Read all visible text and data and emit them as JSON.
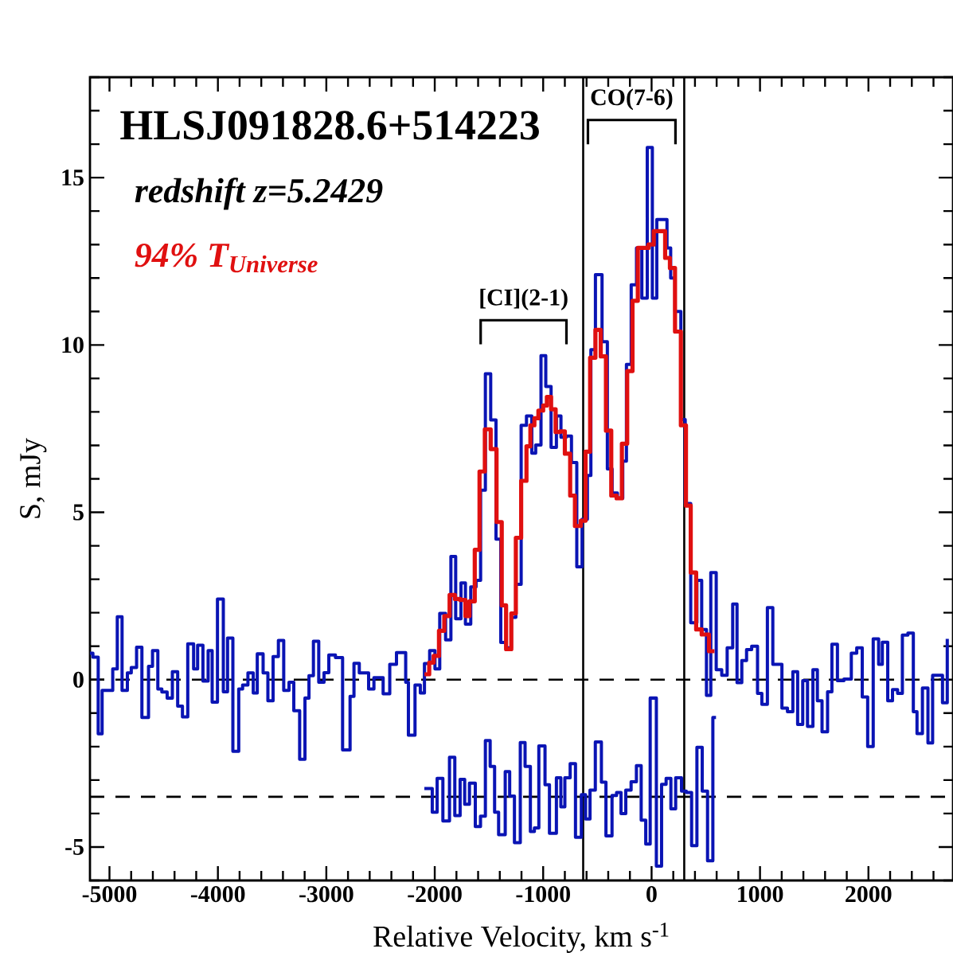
{
  "chart_data": {
    "type": "step",
    "title": "HLSJ091828.6+514223",
    "xlabel": "Relative Velocity, km s$^{-1}$",
    "ylabel": "S, mJy",
    "xlim": [
      -5180,
      2780
    ],
    "ylim": [
      -6,
      18
    ],
    "xticks": [
      -5000,
      {
        "value": -4800,
        "label": null
      },
      {
        "value": -4600,
        "label": null
      },
      {
        "value": -4400,
        "label": null
      },
      {
        "value": -4200,
        "label": null
      },
      -4000,
      {
        "value": -3800,
        "label": null
      },
      {
        "value": -3600,
        "label": null
      },
      {
        "value": -3400,
        "label": null
      },
      {
        "value": -3200,
        "label": null
      },
      -3000,
      {
        "value": -2800,
        "label": null
      },
      {
        "value": -2600,
        "label": null
      },
      {
        "value": -2400,
        "label": null
      },
      {
        "value": -2200,
        "label": null
      },
      -2000,
      {
        "value": -1800,
        "label": null
      },
      {
        "value": -1600,
        "label": null
      },
      {
        "value": -1400,
        "label": null
      },
      {
        "value": -1200,
        "label": null
      },
      -1000,
      {
        "value": -800,
        "label": null
      },
      {
        "value": -600,
        "label": null
      },
      {
        "value": -400,
        "label": null
      },
      {
        "value": -200,
        "label": null
      },
      0,
      {
        "value": 200,
        "label": null
      },
      {
        "value": 400,
        "label": null
      },
      {
        "value": 600,
        "label": null
      },
      {
        "value": 800,
        "label": null
      },
      1000,
      {
        "value": 1200,
        "label": null
      },
      {
        "value": 1400,
        "label": null
      },
      {
        "value": 1600,
        "label": null
      },
      {
        "value": 1800,
        "label": null
      },
      2000,
      {
        "value": 2200,
        "label": null
      },
      {
        "value": 2400,
        "label": null
      },
      {
        "value": 2600,
        "label": null
      }
    ],
    "yticks": [
      {
        "value": -6,
        "label": null
      },
      -5,
      {
        "value": -4,
        "label": null
      },
      {
        "value": -3,
        "label": null
      },
      {
        "value": -2,
        "label": null
      },
      {
        "value": -1,
        "label": null
      },
      0,
      {
        "value": 1,
        "label": null
      },
      {
        "value": 2,
        "label": null
      },
      {
        "value": 3,
        "label": null
      },
      {
        "value": 4,
        "label": null
      },
      5,
      {
        "value": 6,
        "label": null
      },
      {
        "value": 7,
        "label": null
      },
      {
        "value": 8,
        "label": null
      },
      {
        "value": 9,
        "label": null
      },
      10,
      {
        "value": 11,
        "label": null
      },
      {
        "value": 12,
        "label": null
      },
      {
        "value": 13,
        "label": null
      },
      {
        "value": 14,
        "label": null
      },
      15,
      {
        "value": 16,
        "label": null
      },
      {
        "value": 17,
        "label": null
      },
      {
        "value": 18,
        "label": null
      }
    ],
    "series": [
      {
        "color": "#0a14b4",
        "x": [
          -5180,
          -5153,
          -5104,
          -5068,
          -4970,
          -4928,
          -4884,
          -4835,
          -4799,
          -4750,
          -4701,
          -4640,
          -4603,
          -4554,
          -4517,
          -4468,
          -4420,
          -4371,
          -4327,
          -4278,
          -4224,
          -4187,
          -4138,
          -4090,
          -4053,
          -4004,
          -3950,
          -3911,
          -3862,
          -3808,
          -3772,
          -3723,
          -3674,
          -3637,
          -3583,
          -3539,
          -3491,
          -3442,
          -3393,
          -3344,
          -3300,
          -3246,
          -3197,
          -3160,
          -3119,
          -3070,
          -3021,
          -2977,
          -2916,
          -2850,
          -2781,
          -2745,
          -2696,
          -2610,
          -2561,
          -2476,
          -2415,
          -2353,
          -2268,
          -2243,
          -2182,
          -2133,
          -2095,
          -2047,
          -1998,
          -1954,
          -1900,
          -1851,
          -1807,
          -1758,
          -1717,
          -1668,
          -1619,
          -1577,
          -1533,
          -1484,
          -1435,
          -1391,
          -1342,
          -1294,
          -1252,
          -1203,
          -1154,
          -1105,
          -1069,
          -1020,
          -976,
          -927,
          -878,
          -836,
          -787,
          -739,
          -690,
          -641,
          -592,
          -560,
          -518,
          -457,
          -408,
          -364,
          -315,
          -266,
          -232,
          -188,
          -139,
          -90,
          -40,
          7,
          48,
          142,
          176,
          216,
          270,
          310,
          361,
          418,
          462,
          506,
          546,
          596,
          647,
          697,
          748,
          788,
          832,
          876,
          923,
          977,
          1017,
          1068,
          1118,
          1202,
          1253,
          1303,
          1347,
          1394,
          1438,
          1488,
          1529,
          1572,
          1623,
          1663,
          1714,
          1774,
          1842,
          1892,
          1943,
          1993,
          2044,
          2094,
          2128,
          2178,
          2222,
          2269,
          2313,
          2364,
          2414,
          2448,
          2498,
          2549,
          2592,
          2683,
          2727
        ],
        "values": [
          0.79,
          0.67,
          -1.62,
          -0.32,
          0.32,
          1.88,
          -0.32,
          0.2,
          0.36,
          0.97,
          -1.13,
          0.4,
          0.87,
          -0.28,
          -0.37,
          -0.55,
          0.24,
          -0.79,
          -1.11,
          1.07,
          0.32,
          1.03,
          -0.04,
          0.87,
          -0.67,
          2.41,
          -0.36,
          1.24,
          -2.14,
          -0.28,
          -0.16,
          0.2,
          -0.4,
          0.77,
          0.2,
          -0.63,
          0.69,
          1.17,
          -0.32,
          -0.08,
          -0.93,
          -2.38,
          -0.55,
          0.12,
          1.15,
          -0.08,
          0.21,
          0.74,
          0.66,
          -2.1,
          -0.5,
          0.49,
          0.2,
          -0.28,
          0.06,
          -0.42,
          0.46,
          0.81,
          -0.08,
          -1.66,
          -0.16,
          -0.4,
          0.48,
          0.87,
          0.32,
          1.98,
          1.19,
          3.68,
          1.82,
          2.89,
          1.66,
          2.77,
          2.97,
          5.66,
          9.14,
          7.76,
          4.2,
          1.11,
          0.95,
          1.86,
          2.85,
          7.6,
          7.88,
          6.77,
          7.01,
          9.68,
          8.76,
          6.94,
          7.88,
          7.24,
          7.28,
          6.49,
          3.37,
          4.79,
          6.1,
          9.86,
          12.1,
          10.1,
          6.3,
          5.58,
          5.42,
          6.53,
          9.42,
          11.8,
          12.9,
          11.4,
          15.9,
          11.4,
          13.75,
          12.9,
          12.0,
          11.0,
          7.77,
          5.26,
          1.7,
          2.97,
          1.5,
          -0.47,
          3.2,
          0.3,
          0.13,
          0.95,
          2.26,
          -0.09,
          0.57,
          0.9,
          1.0,
          -0.41,
          -0.74,
          2.15,
          0.46,
          -0.85,
          -0.96,
          0.24,
          -1.34,
          -0.03,
          -1.4,
          0.3,
          -0.63,
          -1.56,
          -0.36,
          1.06,
          -0.03,
          0.02,
          0.79,
          0.95,
          -0.52,
          -2.0,
          1.22,
          0.46,
          1.12,
          -0.63,
          -0.3,
          -0.41,
          1.33,
          1.39,
          -0.96,
          -1.61,
          -0.25,
          -1.89,
          0.13,
          -0.69,
          1.22
        ]
      },
      {
        "color": "#e01010",
        "x": [
          -2095,
          -2051,
          -2010,
          -1961,
          -1912,
          -1863,
          -1814,
          -1765,
          -1717,
          -1680,
          -1631,
          -1587,
          -1538,
          -1484,
          -1430,
          -1382,
          -1342,
          -1294,
          -1252,
          -1203,
          -1154,
          -1118,
          -1081,
          -1044,
          -1000,
          -966,
          -927,
          -885,
          -844,
          -800,
          -751,
          -707,
          -653,
          -609,
          -567,
          -518,
          -469,
          -421,
          -372,
          -323,
          -274,
          -225,
          -176,
          -127,
          -29,
          20,
          125,
          169,
          216,
          270,
          317,
          361,
          411,
          462,
          529,
          580
        ],
        "values": [
          0.16,
          0.51,
          0.71,
          1.46,
          1.9,
          2.53,
          2.41,
          2.38,
          1.9,
          2.34,
          3.88,
          6.22,
          7.48,
          6.89,
          4.71,
          2.22,
          0.91,
          1.98,
          4.24,
          5.94,
          6.97,
          7.6,
          7.81,
          8.04,
          8.19,
          8.45,
          8.08,
          7.4,
          7.42,
          6.75,
          5.5,
          4.59,
          4.75,
          6.81,
          9.62,
          10.45,
          9.66,
          7.44,
          5.5,
          5.42,
          7.05,
          9.22,
          11.32,
          12.9,
          13.0,
          13.4,
          12.6,
          12.3,
          10.4,
          7.6,
          5.2,
          3.2,
          1.5,
          1.35,
          0.85,
          0.85
        ]
      },
      {
        "color": "#0a14b4",
        "x": [
          -2096,
          -2023,
          -1978,
          -1925,
          -1864,
          -1815,
          -1766,
          -1724,
          -1680,
          -1626,
          -1578,
          -1533,
          -1489,
          -1448,
          -1411,
          -1350,
          -1309,
          -1265,
          -1211,
          -1167,
          -1118,
          -1081,
          -1040,
          -983,
          -942,
          -878,
          -837,
          -800,
          -751,
          -702,
          -648,
          -609,
          -568,
          -519,
          -463,
          -421,
          -365,
          -323,
          -282,
          -238,
          -189,
          -140,
          -96,
          -54,
          -13,
          44,
          92,
          134,
          178,
          222,
          276,
          320,
          369,
          418,
          467,
          516,
          565,
          594
        ],
        "values": [
          -3.25,
          -3.96,
          -2.95,
          -4.22,
          -2.32,
          -4.06,
          -2.98,
          -3.72,
          -3.09,
          -4.39,
          -4.08,
          -1.82,
          -2.59,
          -3.96,
          -4.63,
          -2.75,
          -3.48,
          -4.87,
          -1.88,
          -2.59,
          -4.54,
          -4.43,
          -1.98,
          -3.14,
          -4.59,
          -2.93,
          -3.8,
          -2.93,
          -2.51,
          -4.71,
          -3.44,
          -4.16,
          -3.3,
          -1.86,
          -3.06,
          -4.67,
          -3.46,
          -3.37,
          -4.0,
          -3.3,
          -3.05,
          -2.57,
          -4.2,
          -4.91,
          -0.55,
          -5.57,
          -3.13,
          -2.95,
          -3.86,
          -2.93,
          -3.33,
          -3.37,
          -4.96,
          -2.02,
          -3.33,
          -5.41,
          -1.13,
          -1.13
        ]
      }
    ],
    "ref_lines": [
      {
        "axis": "x",
        "value": -631,
        "line_style": "solid"
      },
      {
        "axis": "x",
        "value": 301,
        "line_style": "solid"
      },
      {
        "axis": "y",
        "value": 0,
        "line_style": "dashed"
      },
      {
        "axis": "y",
        "value": -3.5,
        "line_style": "dashed"
      }
    ],
    "annotations": [
      "redshift z=5.2429",
      "94% T$_{Universe}$",
      "[CI](2-1)",
      "CO(7-6)"
    ],
    "grid": false
  }
}
